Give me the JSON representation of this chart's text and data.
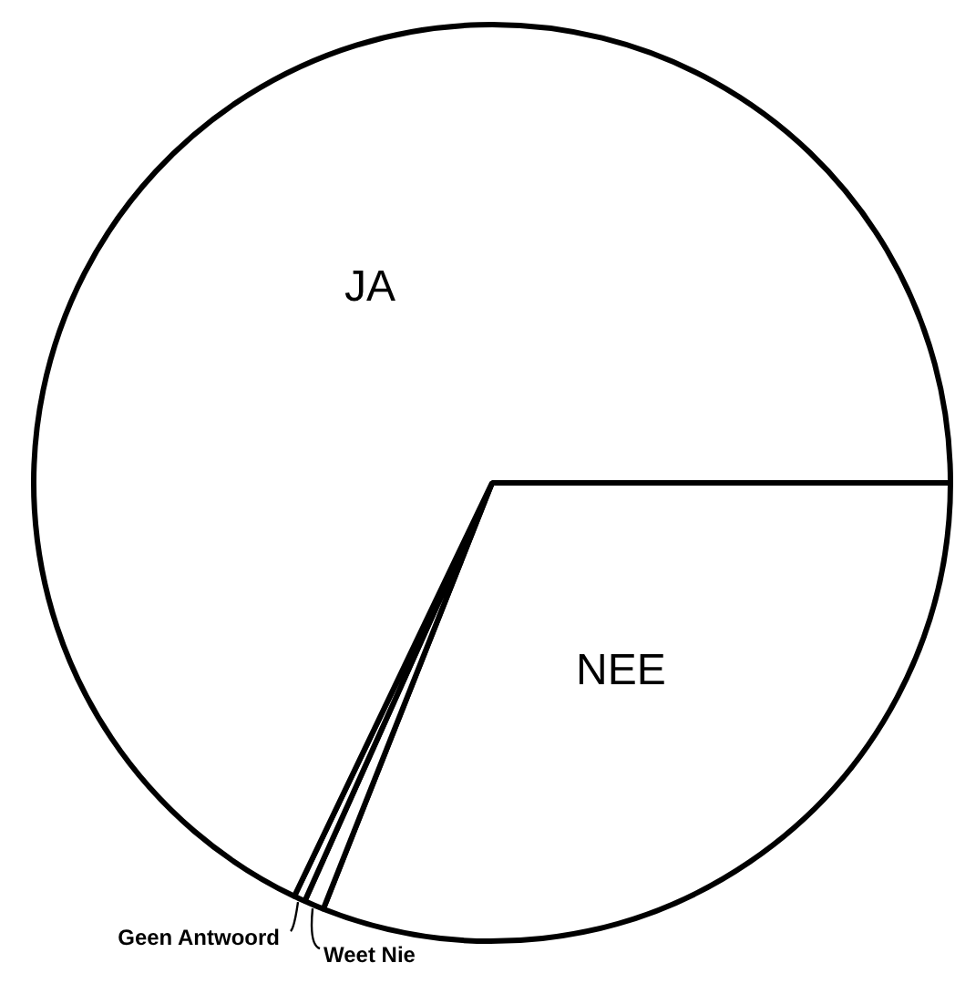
{
  "chart_data": {
    "type": "pie",
    "categories": [
      "NEE",
      "Weet Nie",
      "Geen Antwoord",
      "JA"
    ],
    "values": [
      31,
      0.7,
      0.4,
      67.9
    ],
    "colors": [
      "#ffffff",
      "#ffffff",
      "#ffffff",
      "#ffffff"
    ]
  }
}
